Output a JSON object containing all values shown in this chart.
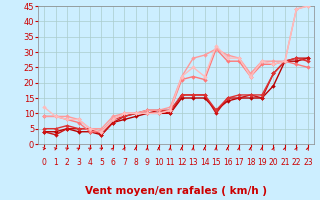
{
  "title": "",
  "xlabel": "Vent moyen/en rafales ( km/h )",
  "ylabel": "",
  "background_color": "#cceeff",
  "grid_color": "#aacccc",
  "xlim": [
    -0.5,
    23.5
  ],
  "ylim": [
    0,
    45
  ],
  "yticks": [
    0,
    5,
    10,
    15,
    20,
    25,
    30,
    35,
    40,
    45
  ],
  "xticks": [
    0,
    1,
    2,
    3,
    4,
    5,
    6,
    7,
    8,
    9,
    10,
    11,
    12,
    13,
    14,
    15,
    16,
    17,
    18,
    19,
    20,
    21,
    22,
    23
  ],
  "series": [
    {
      "x": [
        0,
        1,
        2,
        3,
        4,
        5,
        6,
        7,
        8,
        9,
        10,
        11,
        12,
        13,
        14,
        15,
        16,
        17,
        18,
        19,
        20,
        21,
        22,
        23
      ],
      "y": [
        4,
        4,
        5,
        4,
        4,
        3,
        7,
        8,
        9,
        10,
        10,
        10,
        15,
        15,
        15,
        11,
        14,
        15,
        15,
        15,
        19,
        27,
        27,
        28
      ],
      "color": "#bb0000",
      "lw": 1.0,
      "marker": "D",
      "ms": 2.0
    },
    {
      "x": [
        0,
        1,
        2,
        3,
        4,
        5,
        6,
        7,
        8,
        9,
        10,
        11,
        12,
        13,
        14,
        15,
        16,
        17,
        18,
        19,
        20,
        21,
        22,
        23
      ],
      "y": [
        4,
        3,
        5,
        5,
        5,
        3,
        7,
        9,
        10,
        10,
        11,
        10,
        16,
        16,
        16,
        10,
        15,
        15,
        16,
        15,
        23,
        27,
        28,
        28
      ],
      "color": "#cc1111",
      "lw": 1.0,
      "marker": "D",
      "ms": 2.0
    },
    {
      "x": [
        0,
        1,
        2,
        3,
        4,
        5,
        6,
        7,
        8,
        9,
        10,
        11,
        12,
        13,
        14,
        15,
        16,
        17,
        18,
        19,
        20,
        21,
        22,
        23
      ],
      "y": [
        5,
        5,
        6,
        5,
        5,
        4,
        8,
        9,
        10,
        11,
        11,
        11,
        16,
        16,
        16,
        11,
        15,
        16,
        16,
        16,
        23,
        27,
        28,
        27
      ],
      "color": "#dd3333",
      "lw": 1.0,
      "marker": "D",
      "ms": 2.0
    },
    {
      "x": [
        0,
        1,
        2,
        3,
        4,
        5,
        6,
        7,
        8,
        9,
        10,
        11,
        12,
        13,
        14,
        15,
        16,
        17,
        18,
        19,
        20,
        21,
        22,
        23
      ],
      "y": [
        9,
        9,
        8,
        7,
        4,
        4,
        8,
        10,
        10,
        10,
        10,
        11,
        21,
        22,
        21,
        31,
        27,
        27,
        22,
        26,
        26,
        27,
        26,
        25
      ],
      "color": "#ff7777",
      "lw": 1.0,
      "marker": "D",
      "ms": 2.0
    },
    {
      "x": [
        0,
        1,
        2,
        3,
        4,
        5,
        6,
        7,
        8,
        9,
        10,
        11,
        12,
        13,
        14,
        15,
        16,
        17,
        18,
        19,
        20,
        21,
        22,
        23
      ],
      "y": [
        9,
        9,
        9,
        8,
        5,
        5,
        9,
        10,
        10,
        11,
        11,
        12,
        22,
        28,
        29,
        31,
        29,
        28,
        23,
        27,
        27,
        27,
        44,
        45
      ],
      "color": "#ff9999",
      "lw": 1.0,
      "marker": "D",
      "ms": 2.0
    },
    {
      "x": [
        0,
        1,
        2,
        3,
        4,
        5,
        6,
        7,
        8,
        9,
        10,
        11,
        12,
        13,
        14,
        15,
        16,
        17,
        18,
        19,
        20,
        21,
        22,
        23
      ],
      "y": [
        12,
        9,
        8,
        8,
        5,
        4,
        8,
        10,
        10,
        10,
        10,
        11,
        22,
        25,
        22,
        32,
        28,
        28,
        22,
        27,
        26,
        27,
        44,
        45
      ],
      "color": "#ffbbbb",
      "lw": 1.0,
      "marker": "D",
      "ms": 2.0
    }
  ],
  "arrow_angles": [
    80,
    70,
    60,
    55,
    55,
    55,
    30,
    20,
    10,
    5,
    5,
    5,
    5,
    5,
    5,
    5,
    5,
    10,
    10,
    10,
    15,
    20,
    20,
    20
  ],
  "arrow_color": "#cc0000",
  "xlabel_color": "#cc0000",
  "tick_color": "#cc0000",
  "xlabel_fontsize": 7.5,
  "ytick_fontsize": 6,
  "xtick_fontsize": 5.5
}
